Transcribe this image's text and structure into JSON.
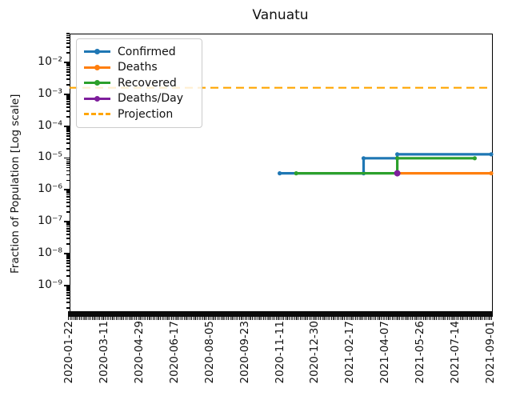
{
  "title": "Vanuatu",
  "axes": {
    "ylabel": "Fraction of Population [Log scale]",
    "ytick_exponents": [
      -2,
      -3,
      -4,
      -5,
      -6,
      -7,
      -8,
      -9
    ],
    "xticks": [
      "2020-01-22",
      "2020-03-11",
      "2020-04-29",
      "2020-06-17",
      "2020-08-05",
      "2020-09-23",
      "2020-11-11",
      "2020-12-30",
      "2021-02-17",
      "2021-04-07",
      "2021-05-26",
      "2021-07-14",
      "2021-09-01"
    ]
  },
  "legend": {
    "items": [
      {
        "label": "Confirmed",
        "color": "#1f77b4",
        "style": "solid-dot"
      },
      {
        "label": "Deaths",
        "color": "#ff7f0e",
        "style": "solid-dot"
      },
      {
        "label": "Recovered",
        "color": "#2ca02c",
        "style": "solid-dot"
      },
      {
        "label": "Deaths/Day",
        "color": "#7e1e9c",
        "style": "solid-dot"
      },
      {
        "label": "Projection",
        "color": "#ffa500",
        "style": "dashed"
      }
    ]
  },
  "chart_data": {
    "type": "line",
    "title": "Vanuatu",
    "xlabel": "",
    "ylabel": "Fraction of Population [Log scale]",
    "yscale": "log",
    "ylim": [
      1.15e-10,
      0.0804
    ],
    "xlim": [
      "2020-01-22",
      "2021-09-01"
    ],
    "grid": false,
    "legend_position": "upper-left",
    "series": [
      {
        "name": "Confirmed",
        "color": "#1f77b4",
        "dashed": false,
        "points": [
          [
            "2020-11-10",
            3.3e-06
          ],
          [
            "2021-03-07",
            3.3e-06
          ],
          [
            "2021-03-07",
            9.8e-06
          ],
          [
            "2021-04-23",
            9.8e-06
          ],
          [
            "2021-04-23",
            1.3e-05
          ],
          [
            "2021-09-01",
            1.3e-05
          ]
        ]
      },
      {
        "name": "Deaths",
        "color": "#ff7f0e",
        "dashed": false,
        "points": [
          [
            "2021-04-23",
            3.3e-06
          ],
          [
            "2021-09-01",
            3.3e-06
          ]
        ]
      },
      {
        "name": "Recovered",
        "color": "#2ca02c",
        "dashed": false,
        "points": [
          [
            "2020-12-03",
            3.3e-06
          ],
          [
            "2021-04-23",
            3.3e-06
          ],
          [
            "2021-04-23",
            9.8e-06
          ],
          [
            "2021-08-09",
            9.8e-06
          ]
        ]
      },
      {
        "name": "Deaths/Day",
        "color": "#7e1e9c",
        "dashed": false,
        "points": [
          [
            "2021-04-23",
            3.3e-06
          ]
        ]
      },
      {
        "name": "Projection",
        "color": "#ffa500",
        "dashed": true,
        "points": [
          [
            "2020-01-22",
            0.0016
          ],
          [
            "2021-09-01",
            0.0016
          ]
        ]
      }
    ]
  }
}
